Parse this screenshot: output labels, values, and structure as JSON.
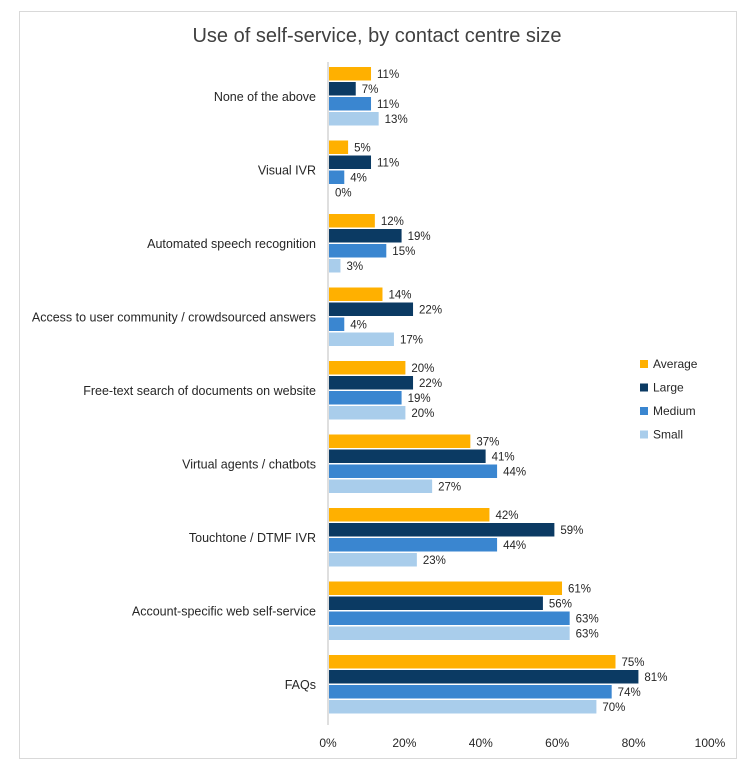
{
  "chart_data": {
    "type": "bar",
    "orientation": "horizontal",
    "title": "Use of self-service, by contact centre size",
    "categories": [
      "None of the above",
      "Visual IVR",
      "Automated speech recognition",
      "Access to user community / crowdsourced answers",
      "Free-text search of documents on website",
      "Virtual agents / chatbots",
      "Touchtone / DTMF IVR",
      "Account-specific web self-service",
      "FAQs"
    ],
    "series": [
      {
        "name": "Average",
        "color": "#FFB000",
        "values": [
          11,
          5,
          12,
          14,
          20,
          37,
          42,
          61,
          75
        ]
      },
      {
        "name": "Large",
        "color": "#0B3A63",
        "values": [
          7,
          11,
          19,
          22,
          22,
          41,
          59,
          56,
          81
        ]
      },
      {
        "name": "Medium",
        "color": "#3A86D0",
        "values": [
          11,
          4,
          15,
          4,
          19,
          44,
          44,
          63,
          74
        ]
      },
      {
        "name": "Small",
        "color": "#A9CDEB",
        "values": [
          13,
          0,
          3,
          17,
          20,
          27,
          23,
          63,
          70
        ]
      }
    ],
    "xlim": [
      0,
      100
    ],
    "xticks": [
      0,
      20,
      40,
      60,
      80,
      100
    ],
    "tick_suffix": "%",
    "value_suffix": "%",
    "xlabel": "",
    "ylabel": "",
    "grid": false,
    "legend_position": "right"
  }
}
